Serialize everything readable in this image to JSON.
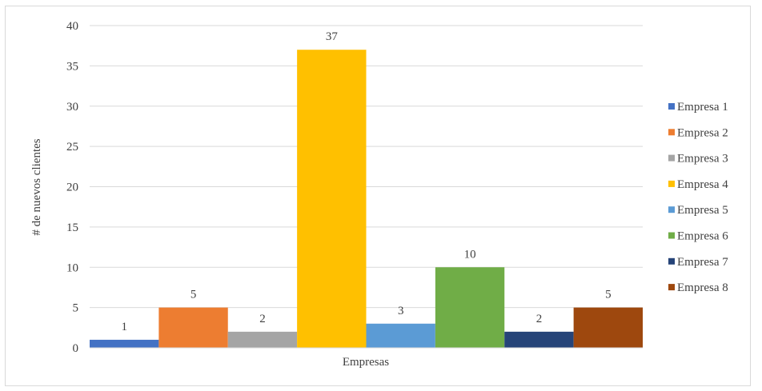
{
  "chart_data": {
    "type": "bar",
    "xlabel": "Empresas",
    "ylabel": "# de nuevos clientes",
    "ylim": [
      0,
      40
    ],
    "yticks": [
      0,
      5,
      10,
      15,
      20,
      25,
      30,
      35,
      40
    ],
    "grid": true,
    "legend_position": "right",
    "series": [
      {
        "name": "Empresa 1",
        "value": 1,
        "color": "#4472C4"
      },
      {
        "name": "Empresa 2",
        "value": 5,
        "color": "#ED7D31"
      },
      {
        "name": "Empresa 3",
        "value": 2,
        "color": "#A5A5A5"
      },
      {
        "name": "Empresa 4",
        "value": 37,
        "color": "#FFC000"
      },
      {
        "name": "Empresa 5",
        "value": 3,
        "color": "#5B9BD5"
      },
      {
        "name": "Empresa 6",
        "value": 10,
        "color": "#70AD47"
      },
      {
        "name": "Empresa 7",
        "value": 2,
        "color": "#264478"
      },
      {
        "name": "Empresa 8",
        "value": 5,
        "color": "#9E480E"
      }
    ]
  }
}
